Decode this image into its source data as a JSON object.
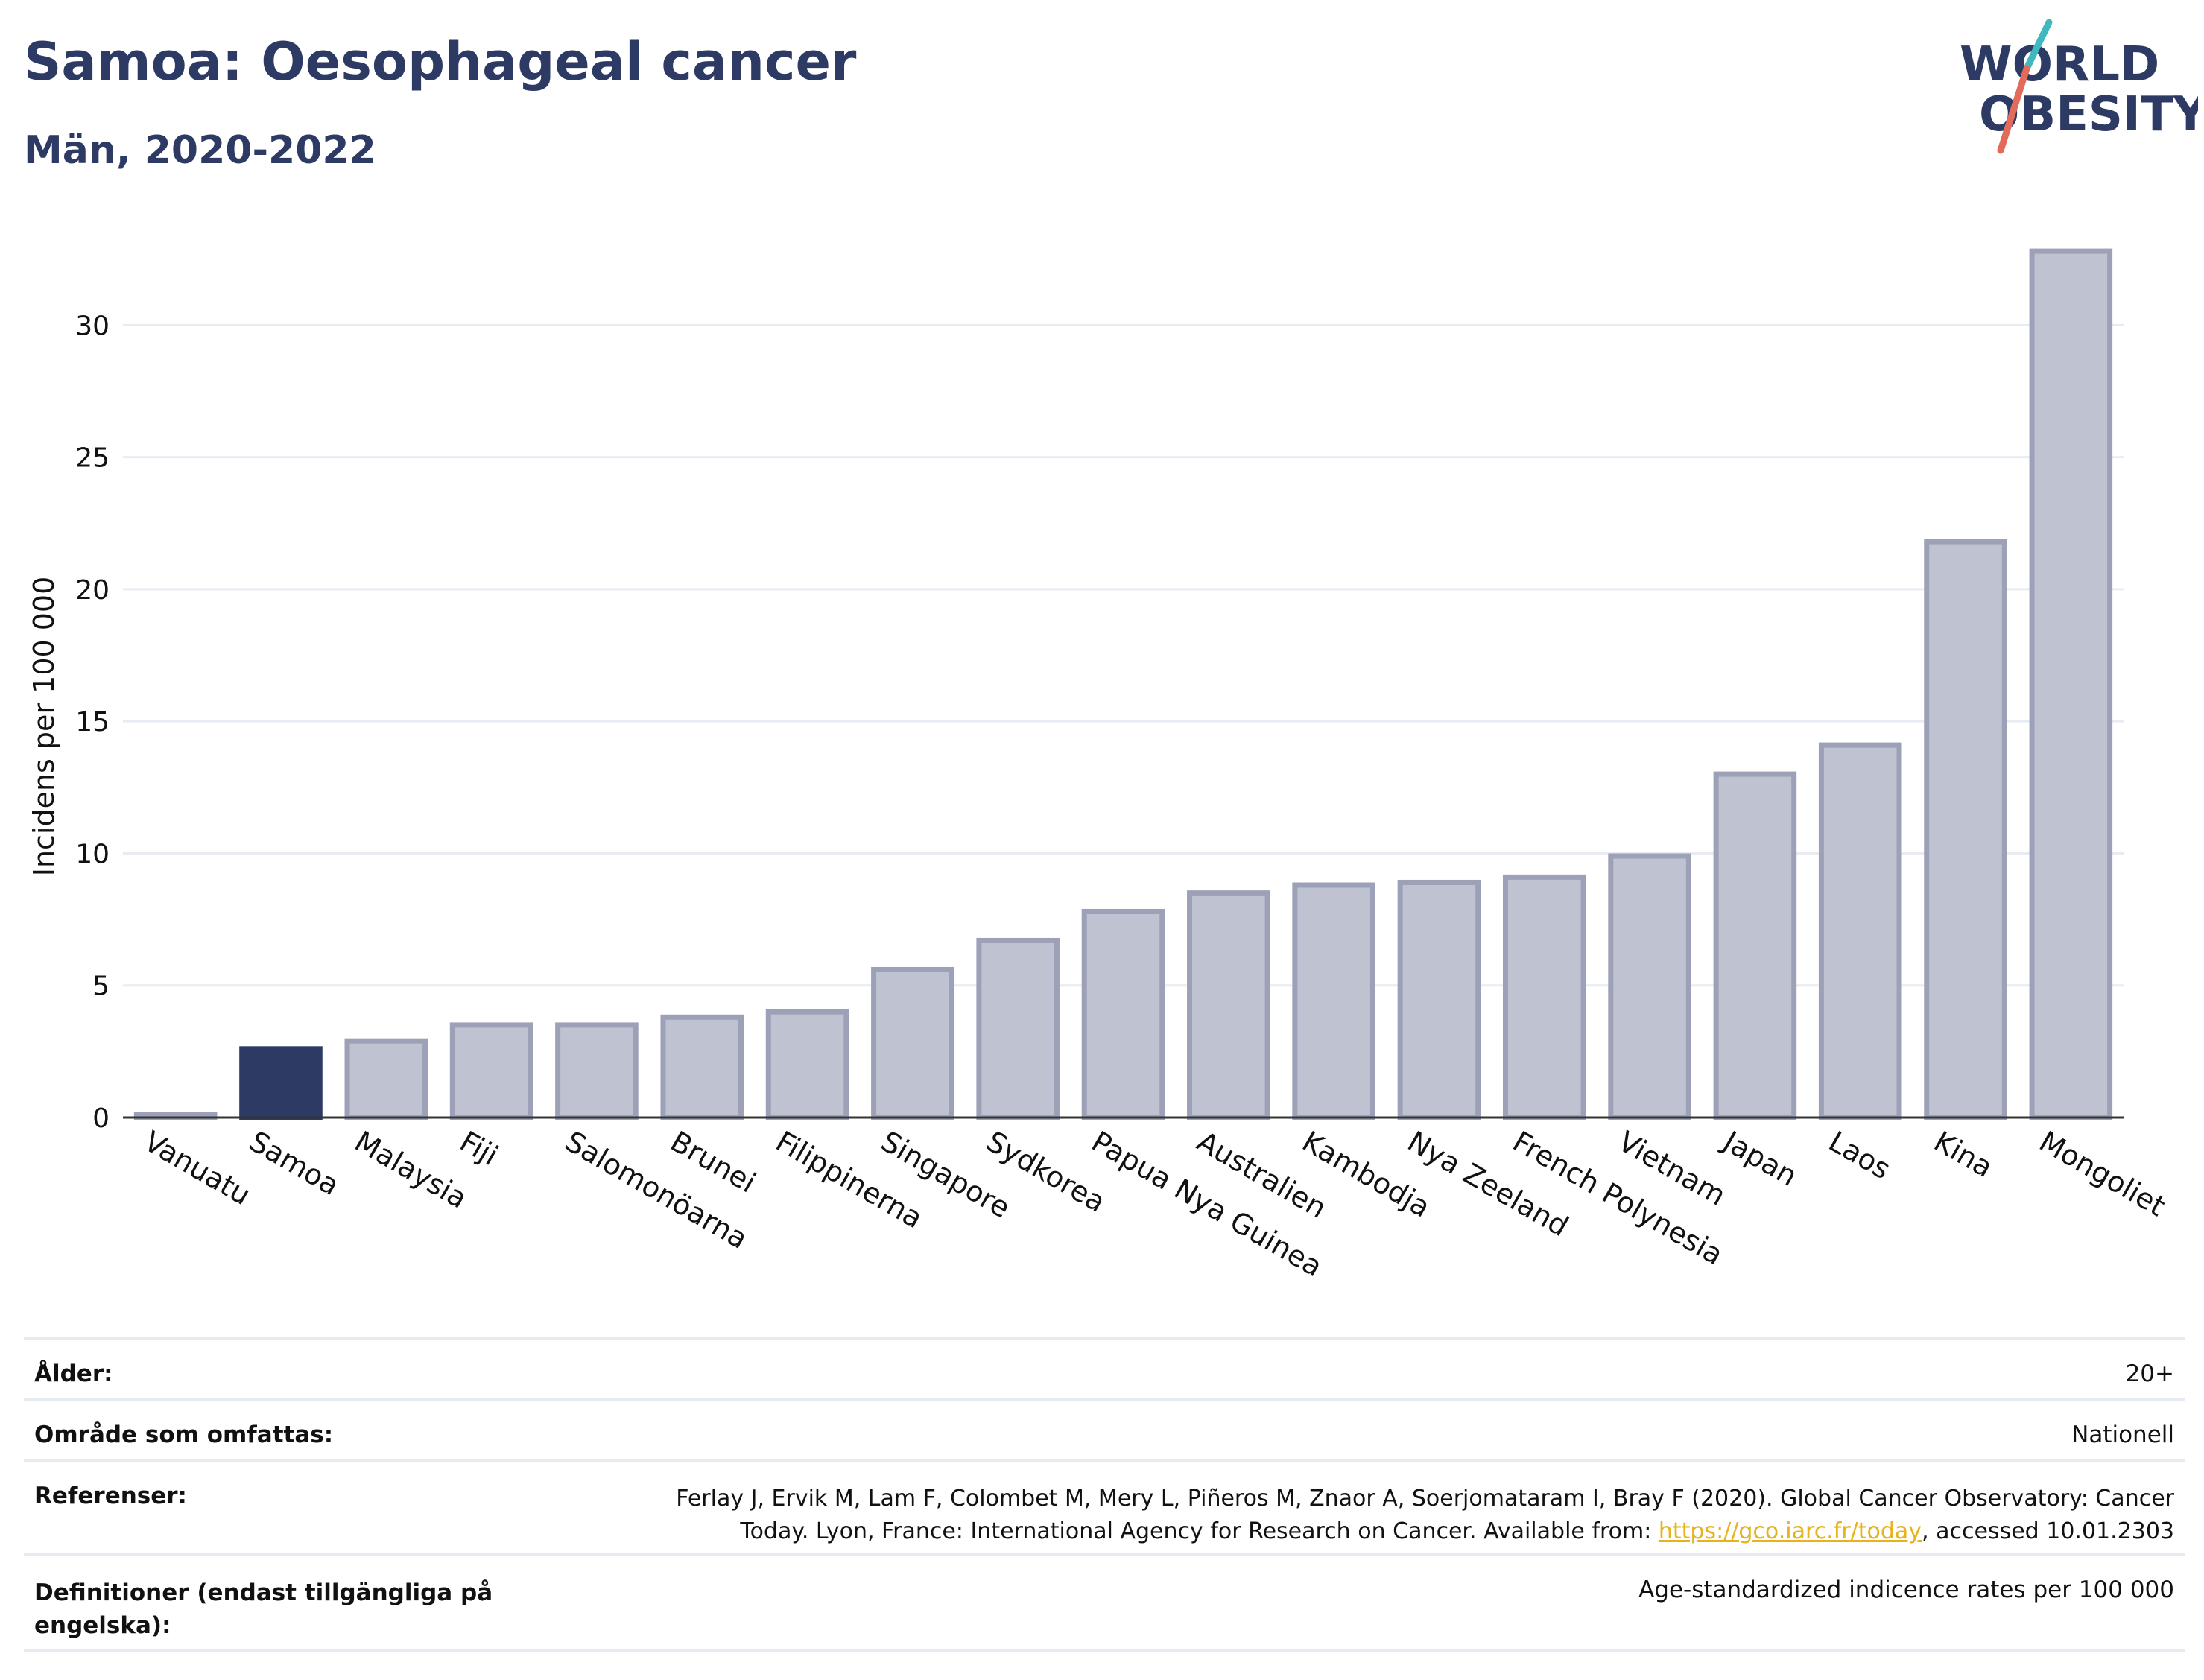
{
  "header": {
    "title": "Samoa: Oesophageal cancer",
    "subtitle": "Män, 2020-2022"
  },
  "logo": {
    "line1": "WORLD",
    "line2": "OBESITY",
    "colors": {
      "text": "#2c3a64",
      "slash_teal": "#3fb8c0",
      "slash_red": "#e36b5b"
    }
  },
  "chart_data": {
    "type": "bar",
    "ylabel": "Incidens per 100 000",
    "xlabel": "",
    "ylim": [
      0,
      33
    ],
    "yticks": [
      0,
      5,
      10,
      15,
      20,
      25,
      30
    ],
    "grid": true,
    "categories": [
      "Vanuatu",
      "Samoa",
      "Malaysia",
      "Fiji",
      "Salomonöarna",
      "Brunei",
      "Filippinerna",
      "Singapore",
      "Sydkorea",
      "Papua Nya Guinea",
      "Australien",
      "Kambodja",
      "Nya Zeeland",
      "French Polynesia",
      "Vietnam",
      "Japan",
      "Laos",
      "Kina",
      "Mongoliet"
    ],
    "values": [
      0.1,
      2.6,
      2.9,
      3.5,
      3.5,
      3.8,
      4.0,
      5.6,
      6.7,
      7.8,
      8.5,
      8.8,
      8.9,
      9.1,
      9.9,
      13.0,
      14.1,
      21.8,
      32.8
    ],
    "highlight": "Samoa",
    "colors": {
      "bar": "#bfc2d0",
      "bar_border": "#9da1b7",
      "highlight": "#2c3a64",
      "grid": "#e8ecf2",
      "axis": "#333333"
    }
  },
  "info": {
    "rows": [
      {
        "label": "Ålder:",
        "value": "20+"
      },
      {
        "label": "Område som omfattas:",
        "value": "Nationell"
      },
      {
        "label": "Referenser:",
        "value_line1": "Ferlay J, Ervik M, Lam F, Colombet M, Mery L, Piñeros M, Znaor A, Soerjomataram I, Bray F (2020). Global Cancer Observatory: Cancer",
        "value_line2_pre": "Today. Lyon, France: International Agency for Research on Cancer. Available from: ",
        "link": "https://gco.iarc.fr/today",
        "value_line2_post": ", accessed 10.01.2303"
      },
      {
        "label_line1": "Definitioner (endast tillgängliga på",
        "label_line2": "engelska):",
        "value": "Age-standardized indicence rates per 100 000"
      }
    ]
  }
}
